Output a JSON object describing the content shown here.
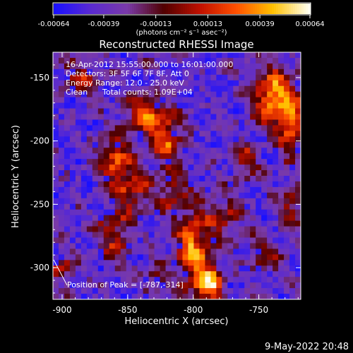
{
  "chart_data": {
    "type": "heatmap",
    "title": "Reconstructed RHESSI Image",
    "xlabel": "Heliocentric X (arcsec)",
    "ylabel": "Heliocentric Y (arcsec)",
    "xlim": [
      -907,
      -718
    ],
    "ylim": [
      -325,
      -130
    ],
    "xticks": [
      -900,
      -850,
      -800,
      -750
    ],
    "yticks": [
      -150,
      -200,
      -250,
      -300
    ],
    "xtick_labels": [
      "-900",
      "-850",
      "-800",
      "-750"
    ],
    "ytick_labels": [
      "-150",
      "-200",
      "-250",
      "-300"
    ],
    "colorbar": {
      "min": -0.00064,
      "max": 0.00064,
      "tick_values": [
        -0.00064,
        -0.00039,
        -0.00013,
        0.00013,
        0.00039,
        0.00064
      ],
      "tick_labels": [
        "-0.00064",
        "-0.00039",
        "-0.00013",
        "0.00013",
        "0.00039",
        "0.00064"
      ],
      "unit_label": "(photons cm⁻² s⁻¹ asec⁻²)",
      "colors": [
        "#1a10ff",
        "#5a2ad0",
        "#7a3aa8",
        "#500000",
        "#c01000",
        "#ff5000",
        "#ffc000",
        "#fffff0"
      ]
    },
    "info": {
      "time_range": "16-Apr-2012 15:55:00.000 to 16:01:00.000",
      "detectors": "Detectors: 3F 5F 6F 7F 8F, Att 0",
      "energy": "Energy Range: 12.0 - 25.0 keV",
      "method": "Clean",
      "counts": "Total counts: 1.09E+04"
    },
    "peak": {
      "label": "Position of Peak = [-787,-314]",
      "x": -787,
      "y": -314
    },
    "bright_features": [
      {
        "x": -740,
        "y": -165,
        "sx": 10,
        "sy": 16,
        "amp": 1.0
      },
      {
        "x": -725,
        "y": -185,
        "sx": 7,
        "sy": 18,
        "amp": 0.8
      },
      {
        "x": -800,
        "y": -285,
        "sx": 9,
        "sy": 22,
        "amp": 0.95
      },
      {
        "x": -787,
        "y": -314,
        "sx": 7,
        "sy": 10,
        "amp": 1.0
      },
      {
        "x": -835,
        "y": -180,
        "sx": 12,
        "sy": 10,
        "amp": 0.75
      },
      {
        "x": -820,
        "y": -200,
        "sx": 8,
        "sy": 14,
        "amp": 0.7
      },
      {
        "x": -860,
        "y": -215,
        "sx": 9,
        "sy": 14,
        "amp": 0.75
      },
      {
        "x": -845,
        "y": -240,
        "sx": 10,
        "sy": 12,
        "amp": 0.6
      },
      {
        "x": -860,
        "y": -275,
        "sx": 9,
        "sy": 16,
        "amp": 0.55
      },
      {
        "x": -885,
        "y": -150,
        "sx": 10,
        "sy": 8,
        "amp": 0.55
      },
      {
        "x": -760,
        "y": -215,
        "sx": 8,
        "sy": 10,
        "amp": 0.5
      },
      {
        "x": -775,
        "y": -260,
        "sx": 9,
        "sy": 12,
        "amp": 0.5
      },
      {
        "x": -745,
        "y": -290,
        "sx": 10,
        "sy": 10,
        "amp": 0.45
      },
      {
        "x": -725,
        "y": -250,
        "sx": 6,
        "sy": 12,
        "amp": 0.5
      },
      {
        "x": -815,
        "y": -240,
        "sx": 7,
        "sy": 12,
        "amp": 0.55
      },
      {
        "x": -900,
        "y": -300,
        "sx": 6,
        "sy": 8,
        "amp": 0.6
      },
      {
        "x": -830,
        "y": -310,
        "sx": 8,
        "sy": 8,
        "amp": 0.45
      }
    ]
  },
  "timestamp": "9-May-2022 20:48"
}
